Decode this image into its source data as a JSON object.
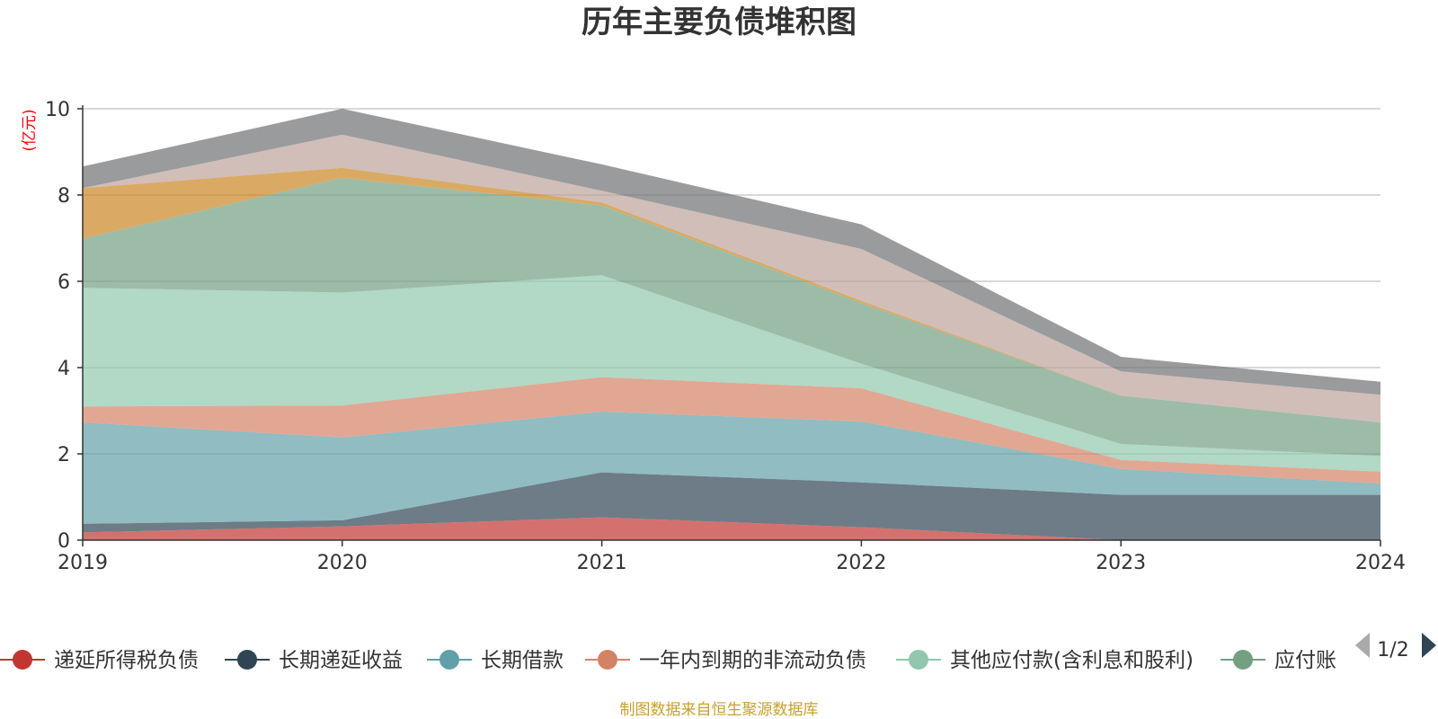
{
  "chart_data": {
    "type": "area",
    "stacked": true,
    "title": "历年主要负债堆积图",
    "ylabel": "(亿元)",
    "xlabel": "",
    "x": [
      "2019",
      "2020",
      "2021",
      "2022",
      "2023",
      "2024"
    ],
    "ylim": [
      0,
      10
    ],
    "yticks": [
      "0",
      "2",
      "4",
      "6",
      "8",
      "10"
    ],
    "grid": true,
    "series": [
      {
        "name": "递延所得税负债",
        "color": "#c23531",
        "values": [
          0.18,
          0.32,
          0.53,
          0.3,
          0.0,
          0.0
        ]
      },
      {
        "name": "长期递延收益",
        "color": "#2f4554",
        "values": [
          0.2,
          0.14,
          1.04,
          1.04,
          1.05,
          1.05
        ]
      },
      {
        "name": "长期借款",
        "color": "#61a0a8",
        "values": [
          2.35,
          1.92,
          1.41,
          1.41,
          0.6,
          0.26
        ]
      },
      {
        "name": "一年内到期的非流动负债",
        "color": "#d48265",
        "values": [
          0.37,
          0.74,
          0.8,
          0.77,
          0.21,
          0.28
        ]
      },
      {
        "name": "其他应付款(含利息和股利)",
        "color": "#91c7ae",
        "values": [
          2.75,
          2.62,
          2.36,
          0.57,
          0.37,
          0.36
        ]
      },
      {
        "name": "应付账款",
        "color": "#749f83",
        "values": [
          1.14,
          2.66,
          1.62,
          1.41,
          1.12,
          0.78
        ]
      },
      {
        "name": "",
        "color": "#ca8622",
        "values": [
          1.17,
          0.23,
          0.07,
          0.05,
          0.0,
          0.0
        ]
      },
      {
        "name": "",
        "color": "#bda29a",
        "values": [
          0.0,
          0.77,
          0.27,
          1.2,
          0.56,
          0.64
        ]
      },
      {
        "name": "",
        "color": "#6e7074",
        "values": [
          0.5,
          0.6,
          0.61,
          0.57,
          0.34,
          0.3
        ]
      }
    ],
    "legend": {
      "position": "bottom",
      "items": [
        "递延所得税负债",
        "长期递延收益",
        "长期借款",
        "一年内到期的非流动负债",
        "其他应付款(含利息和股利)",
        "应付账"
      ],
      "page": "1/2"
    },
    "source": "制图数据来自恒生聚源数据库"
  }
}
